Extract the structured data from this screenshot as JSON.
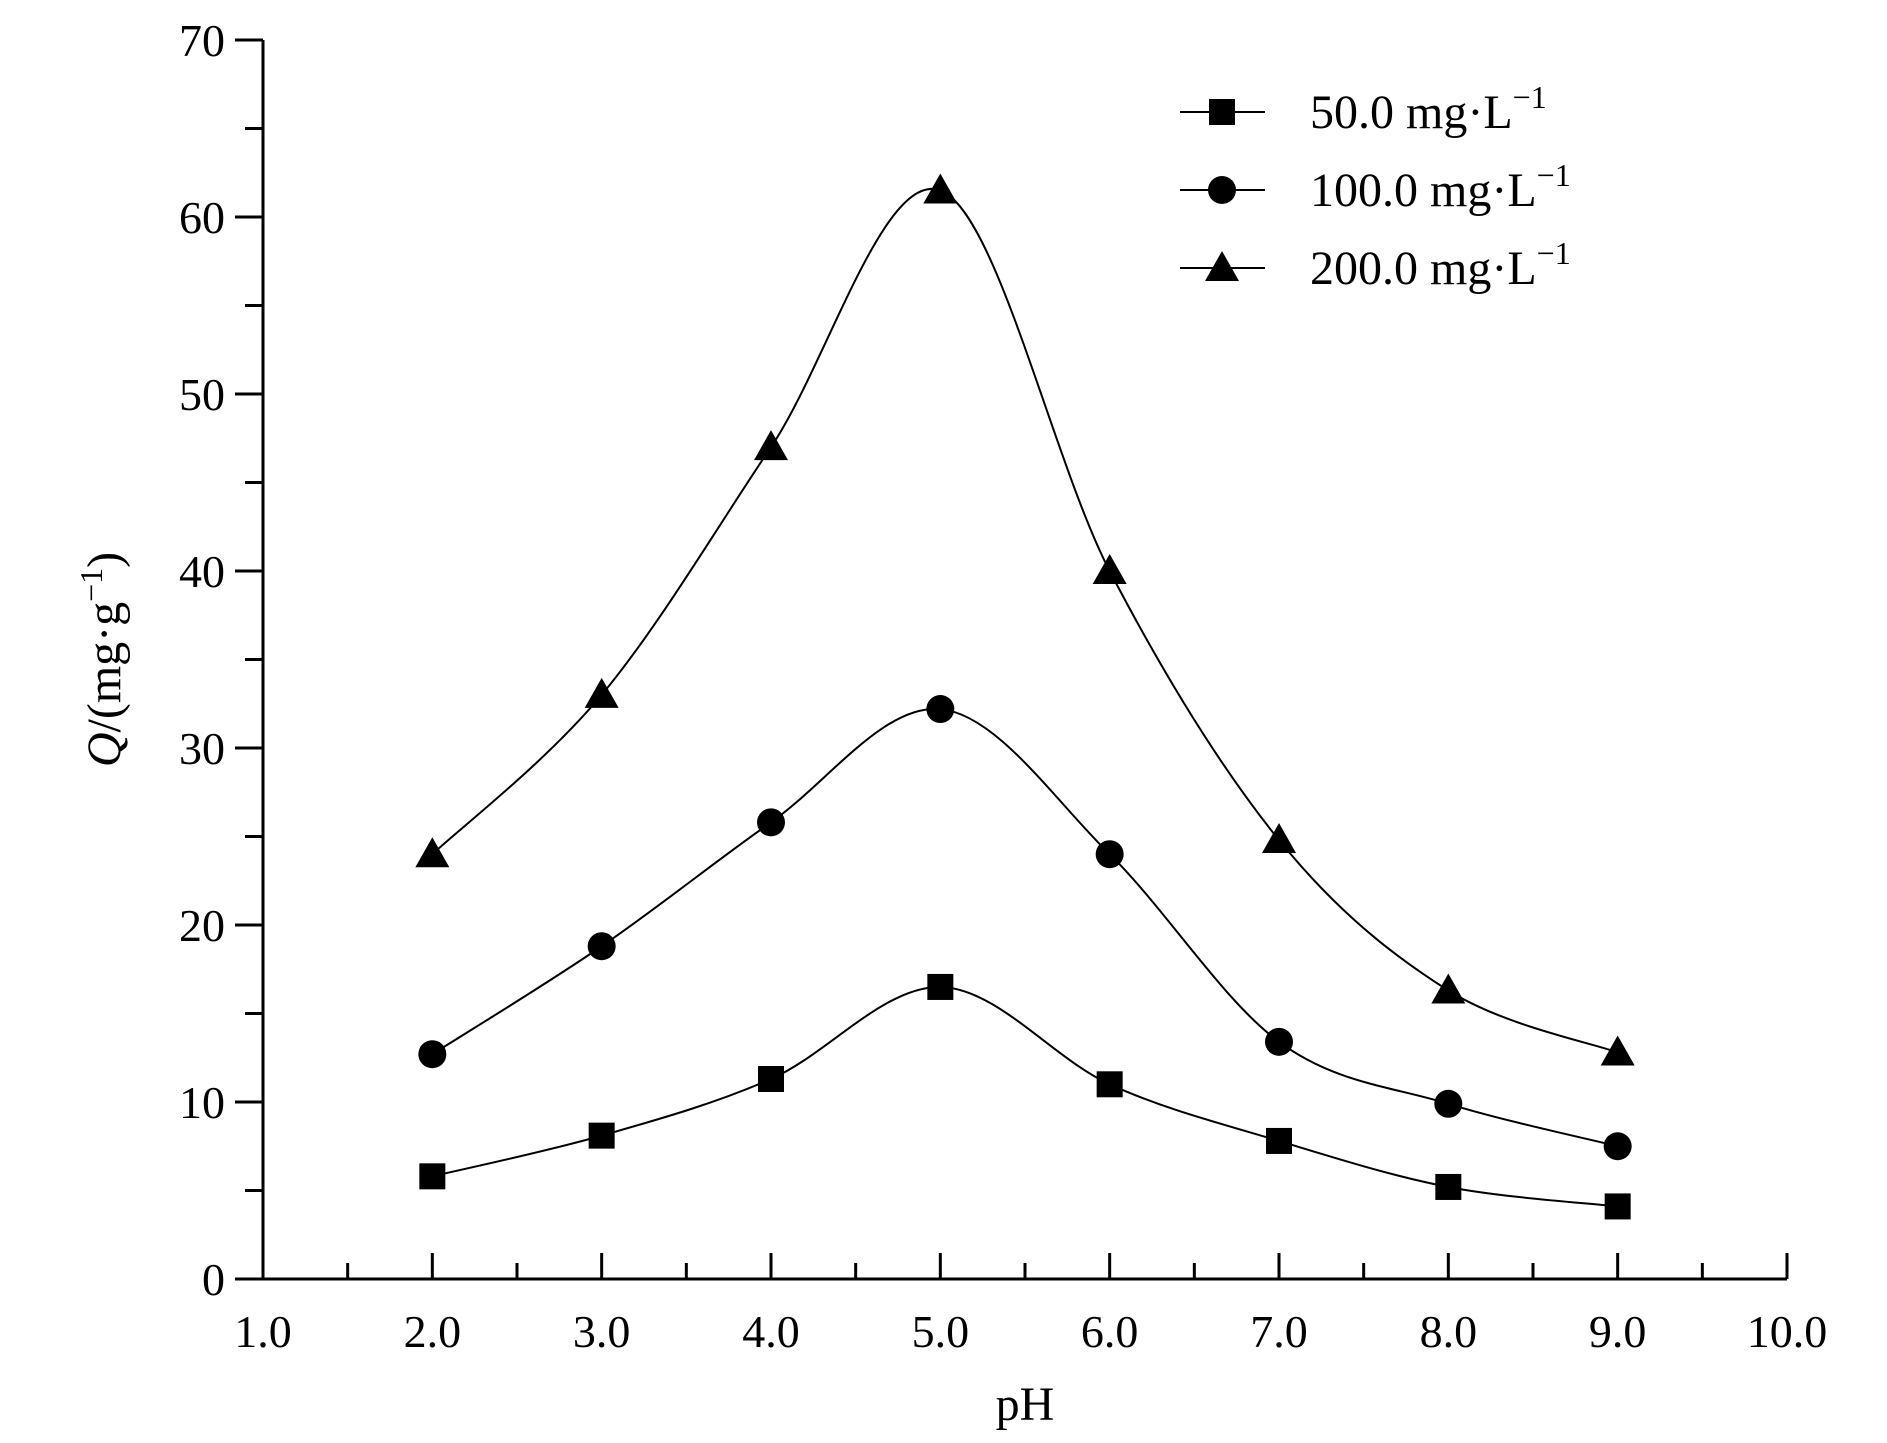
{
  "chart_data": {
    "type": "line",
    "xlabel": "pH",
    "ylabel": {
      "italic": "Q",
      "text": "/(mg·g",
      "sup": "−1",
      "close": ")"
    },
    "xlim": [
      1.0,
      10.0
    ],
    "ylim": [
      0,
      70
    ],
    "x_ticks": [
      1,
      2,
      3,
      4,
      5,
      6,
      7,
      8,
      9,
      10
    ],
    "x_tick_labels": [
      "1.0",
      "2.0",
      "3.0",
      "4.0",
      "5.0",
      "6.0",
      "7.0",
      "8.0",
      "9.0",
      "10.0"
    ],
    "y_ticks": [
      0,
      10,
      20,
      30,
      40,
      50,
      60,
      70
    ],
    "y_tick_labels": [
      "0",
      "10",
      "20",
      "30",
      "40",
      "50",
      "60",
      "70"
    ],
    "grid": false,
    "legend_position": "top-right",
    "x": [
      2.0,
      3.0,
      4.0,
      5.0,
      6.0,
      7.0,
      8.0,
      9.0
    ],
    "series": [
      {
        "name": "50.0 mg·L",
        "name_sup": "−1",
        "marker": "square",
        "values": [
          5.8,
          8.1,
          11.3,
          16.5,
          11.0,
          7.8,
          5.2,
          4.1
        ]
      },
      {
        "name": "100.0 mg·L",
        "name_sup": "−1",
        "marker": "circle",
        "values": [
          12.7,
          18.8,
          25.8,
          32.2,
          24.0,
          13.4,
          9.9,
          7.5
        ]
      },
      {
        "name": "200.0 mg·L",
        "name_sup": "−1",
        "marker": "triangle",
        "values": [
          24.0,
          33.0,
          47.0,
          61.5,
          40.0,
          24.8,
          16.3,
          12.8
        ]
      }
    ]
  }
}
